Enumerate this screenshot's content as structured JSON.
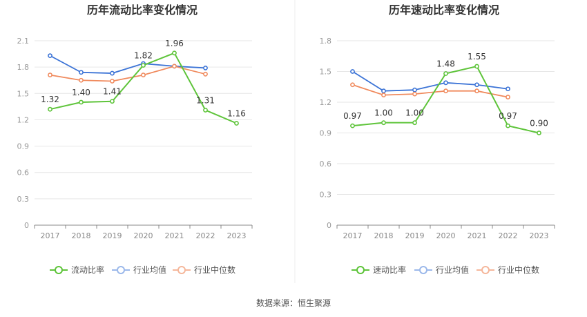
{
  "source_text": "数据来源：恒生聚源",
  "colors": {
    "main": "#5ec43a",
    "avg": "#3b73d6",
    "median": "#f08a5d"
  },
  "chart_data": [
    {
      "type": "line",
      "title": "历年流动比率变化情况",
      "categories": [
        "2017",
        "2018",
        "2019",
        "2020",
        "2021",
        "2022",
        "2023"
      ],
      "ylim": [
        0,
        2.1
      ],
      "yticks": [
        "0",
        "0.3",
        "0.6",
        "0.9",
        "1.2",
        "1.5",
        "1.8",
        "2.1"
      ],
      "grid": true,
      "legend_position": "bottom",
      "series": [
        {
          "name": "流动比率",
          "values": [
            1.32,
            1.4,
            1.41,
            1.82,
            1.96,
            1.31,
            1.16
          ],
          "labels": [
            "1.32",
            "1.40",
            "1.41",
            "1.82",
            "1.96",
            "1.31",
            "1.16"
          ]
        },
        {
          "name": "行业均值",
          "values": [
            1.93,
            1.74,
            1.73,
            1.84,
            1.81,
            1.79,
            null
          ]
        },
        {
          "name": "行业中位数",
          "values": [
            1.71,
            1.65,
            1.64,
            1.71,
            1.81,
            1.72,
            null
          ]
        }
      ]
    },
    {
      "type": "line",
      "title": "历年速动比率变化情况",
      "categories": [
        "2017",
        "2018",
        "2019",
        "2020",
        "2021",
        "2022",
        "2023"
      ],
      "ylim": [
        0,
        1.8
      ],
      "yticks": [
        "0",
        "0.3",
        "0.6",
        "0.9",
        "1.2",
        "1.5",
        "1.8"
      ],
      "grid": true,
      "legend_position": "bottom",
      "series": [
        {
          "name": "速动比率",
          "values": [
            0.97,
            1.0,
            1.0,
            1.48,
            1.55,
            0.97,
            0.9
          ],
          "labels": [
            "0.97",
            "1.00",
            "1.00",
            "1.48",
            "1.55",
            "0.97",
            "0.90"
          ]
        },
        {
          "name": "行业均值",
          "values": [
            1.5,
            1.31,
            1.32,
            1.39,
            1.37,
            1.33,
            null
          ]
        },
        {
          "name": "行业中位数",
          "values": [
            1.37,
            1.27,
            1.28,
            1.31,
            1.31,
            1.25,
            null
          ]
        }
      ]
    }
  ]
}
